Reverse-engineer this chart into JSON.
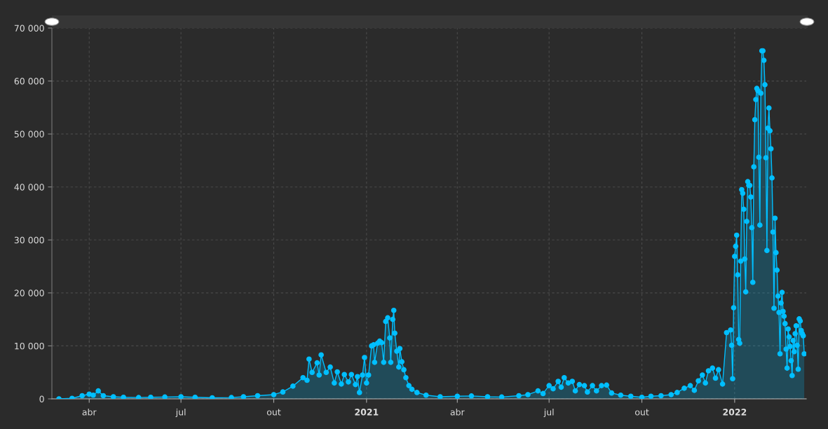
{
  "chart_data": {
    "type": "area",
    "marker": "circle",
    "line_style": "solid",
    "grid": true,
    "xlim": [
      "2020-02-24",
      "2022-03-13"
    ],
    "ylim": [
      0,
      70000
    ],
    "yticks": [
      {
        "value": 0,
        "label": "0"
      },
      {
        "value": 10000,
        "label": "10 000"
      },
      {
        "value": 20000,
        "label": "20 000"
      },
      {
        "value": 30000,
        "label": "30 000"
      },
      {
        "value": 40000,
        "label": "40 000"
      },
      {
        "value": 50000,
        "label": "50 000"
      },
      {
        "value": 60000,
        "label": "60 000"
      },
      {
        "value": 70000,
        "label": "70 000"
      }
    ],
    "xticks": [
      {
        "value": "2020-04-01",
        "label": "abr"
      },
      {
        "value": "2020-07-01",
        "label": "jul"
      },
      {
        "value": "2020-10-01",
        "label": "out"
      },
      {
        "value": "2021-01-01",
        "label": "2021"
      },
      {
        "value": "2021-04-01",
        "label": "abr"
      },
      {
        "value": "2021-07-01",
        "label": "jul"
      },
      {
        "value": "2021-10-01",
        "label": "out"
      },
      {
        "value": "2022-01-01",
        "label": "2022"
      }
    ],
    "series": [
      {
        "color": "#00bfff",
        "x": [
          "2020-03-02",
          "2020-03-15",
          "2020-03-25",
          "2020-04-01",
          "2020-04-05",
          "2020-04-10",
          "2020-04-15",
          "2020-04-25",
          "2020-05-05",
          "2020-05-20",
          "2020-06-01",
          "2020-06-15",
          "2020-07-01",
          "2020-07-15",
          "2020-08-01",
          "2020-08-20",
          "2020-09-01",
          "2020-09-15",
          "2020-10-01",
          "2020-10-10",
          "2020-10-20",
          "2020-10-30",
          "2020-11-03",
          "2020-11-05",
          "2020-11-08",
          "2020-11-13",
          "2020-11-15",
          "2020-11-17",
          "2020-11-22",
          "2020-11-26",
          "2020-11-30",
          "2020-12-03",
          "2020-12-07",
          "2020-12-10",
          "2020-12-14",
          "2020-12-17",
          "2020-12-21",
          "2020-12-23",
          "2020-12-25",
          "2020-12-28",
          "2020-12-30",
          "2021-01-01",
          "2021-01-03",
          "2021-01-06",
          "2021-01-08",
          "2021-01-09",
          "2021-01-12",
          "2021-01-14",
          "2021-01-16",
          "2021-01-18",
          "2021-01-20",
          "2021-01-22",
          "2021-01-24",
          "2021-01-25",
          "2021-01-27",
          "2021-01-28",
          "2021-01-29",
          "2021-01-31",
          "2021-02-02",
          "2021-02-03",
          "2021-02-05",
          "2021-02-07",
          "2021-02-09",
          "2021-02-12",
          "2021-02-15",
          "2021-02-20",
          "2021-03-01",
          "2021-03-15",
          "2021-04-01",
          "2021-04-15",
          "2021-05-01",
          "2021-05-15",
          "2021-06-01",
          "2021-06-10",
          "2021-06-20",
          "2021-06-25",
          "2021-07-01",
          "2021-07-05",
          "2021-07-10",
          "2021-07-13",
          "2021-07-16",
          "2021-07-20",
          "2021-07-24",
          "2021-07-27",
          "2021-07-31",
          "2021-08-05",
          "2021-08-08",
          "2021-08-13",
          "2021-08-17",
          "2021-08-22",
          "2021-08-27",
          "2021-09-01",
          "2021-09-10",
          "2021-09-20",
          "2021-10-01",
          "2021-10-10",
          "2021-10-20",
          "2021-10-30",
          "2021-11-05",
          "2021-11-12",
          "2021-11-18",
          "2021-11-22",
          "2021-11-26",
          "2021-11-30",
          "2021-12-03",
          "2021-12-06",
          "2021-12-10",
          "2021-12-13",
          "2021-12-16",
          "2021-12-20",
          "2021-12-24",
          "2021-12-28",
          "2021-12-29",
          "2021-12-30",
          "2021-12-31",
          "2022-01-01",
          "2022-01-02",
          "2022-01-03",
          "2022-01-04",
          "2022-01-05",
          "2022-01-06",
          "2022-01-07",
          "2022-01-08",
          "2022-01-09",
          "2022-01-10",
          "2022-01-11",
          "2022-01-12",
          "2022-01-13",
          "2022-01-14",
          "2022-01-15",
          "2022-01-16",
          "2022-01-17",
          "2022-01-18",
          "2022-01-19",
          "2022-01-20",
          "2022-01-21",
          "2022-01-22",
          "2022-01-23",
          "2022-01-24",
          "2022-01-25",
          "2022-01-26",
          "2022-01-27",
          "2022-01-28",
          "2022-01-29",
          "2022-01-30",
          "2022-01-31",
          "2022-02-01",
          "2022-02-02",
          "2022-02-03",
          "2022-02-04",
          "2022-02-05",
          "2022-02-06",
          "2022-02-07",
          "2022-02-08",
          "2022-02-09",
          "2022-02-10",
          "2022-02-11",
          "2022-02-12",
          "2022-02-13",
          "2022-02-14",
          "2022-02-15",
          "2022-02-16",
          "2022-02-17",
          "2022-02-18",
          "2022-02-19",
          "2022-02-20",
          "2022-02-21",
          "2022-02-22",
          "2022-02-23",
          "2022-02-24",
          "2022-02-25",
          "2022-02-26",
          "2022-02-27",
          "2022-02-28",
          "2022-03-01",
          "2022-03-02",
          "2022-03-03",
          "2022-03-04",
          "2022-03-05",
          "2022-03-06",
          "2022-03-07",
          "2022-03-08",
          "2022-03-09",
          "2022-03-10",
          "2022-03-11"
        ],
        "values": [
          0,
          100,
          600,
          900,
          700,
          1500,
          600,
          400,
          300,
          250,
          300,
          350,
          400,
          300,
          200,
          250,
          400,
          600,
          800,
          1300,
          2400,
          4000,
          3500,
          7500,
          5000,
          6800,
          4500,
          8300,
          5000,
          6000,
          3000,
          5100,
          2800,
          4600,
          3200,
          4600,
          2700,
          4200,
          1200,
          4500,
          7800,
          3000,
          4500,
          10000,
          10200,
          6900,
          10500,
          10900,
          10600,
          6900,
          14600,
          15300,
          11500,
          6900,
          15000,
          16700,
          12400,
          9000,
          6000,
          9500,
          7000,
          5500,
          4000,
          2500,
          1800,
          1200,
          700,
          400,
          500,
          550,
          400,
          350,
          600,
          800,
          1500,
          1000,
          2500,
          1900,
          3300,
          2200,
          4000,
          3000,
          3300,
          1500,
          2700,
          2500,
          1300,
          2500,
          1500,
          2500,
          2600,
          1100,
          700,
          500,
          300,
          500,
          600,
          800,
          1200,
          2000,
          2500,
          1600,
          3400,
          4500,
          3000,
          5300,
          5800,
          3900,
          5500,
          2800,
          12500,
          13000,
          10100,
          3800,
          17200,
          26900,
          28800,
          30900,
          23400,
          11200,
          10500,
          26000,
          39500,
          38800,
          35800,
          26400,
          20200,
          33500,
          41000,
          40300,
          40300,
          38100,
          32300,
          22000,
          43800,
          52700,
          56500,
          58600,
          58200,
          45600,
          32800,
          57700,
          65700,
          65700,
          63900,
          59300,
          45500,
          28000,
          51100,
          54900,
          50600,
          47200,
          41700,
          31500,
          17100,
          34100,
          27600,
          24300,
          19400,
          16300,
          8500,
          18100,
          20100,
          16500,
          15600,
          14200,
          9400,
          5800,
          13200,
          11700,
          9900,
          7200,
          4400,
          11000,
          8900,
          12300,
          13800,
          10100,
          5600,
          15100,
          14700,
          12900,
          12300,
          11900,
          8500
        ]
      }
    ]
  }
}
